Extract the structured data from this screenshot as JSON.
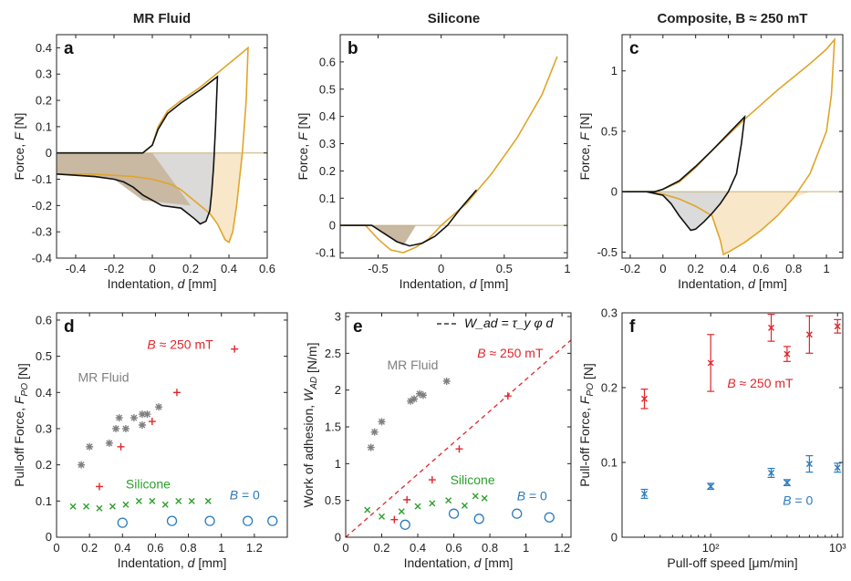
{
  "colors": {
    "mr_gold": "#E0A52A",
    "mr_fill": "#F8E6C6",
    "black": "#111111",
    "grey_fill": "#D9D9D9",
    "brown_fill": "#C9B9A2",
    "red": "#E0262B",
    "green": "#2CA02C",
    "blue": "#2B7BBF",
    "grey": "#7F7F7F"
  },
  "chart_data": [
    {
      "id": "a",
      "letter": "a",
      "title": "MR Fluid",
      "type": "line",
      "xlabel": "Indentation, d [mm]",
      "ylabel": "Force, F [N]",
      "xlim": [
        -0.5,
        0.6
      ],
      "ylim": [
        -0.4,
        0.45
      ],
      "xticks": [
        -0.4,
        -0.2,
        0,
        0.2,
        0.4,
        0.6
      ],
      "xticklabels": [
        "-0.4",
        "-0.2",
        "0",
        "0.2",
        "0.4",
        "0.6"
      ],
      "yticks": [
        -0.4,
        -0.3,
        -0.2,
        -0.1,
        0,
        0.1,
        0.2,
        0.3,
        0.4
      ],
      "yticklabels": [
        "-0.4",
        "-0.3",
        "-0.2",
        "-0.1",
        "0",
        "0.1",
        "0.2",
        "0.3",
        "0.4"
      ],
      "series": [
        {
          "color": "gold",
          "fill": "gold_light",
          "x": [
            -0.5,
            -0.2,
            -0.05,
            0,
            0.03,
            0.08,
            0.15,
            0.25,
            0.35,
            0.45,
            0.5,
            0.49,
            0.47,
            0.44,
            0.42,
            0.4,
            0.38,
            0.34,
            0.3,
            0.25,
            0.2,
            0.15,
            0.1,
            0.0,
            -0.1,
            -0.2,
            -0.28,
            -0.3,
            -0.35,
            -0.5
          ],
          "y": [
            0,
            0,
            0,
            0.03,
            0.1,
            0.16,
            0.2,
            0.25,
            0.31,
            0.37,
            0.4,
            0.2,
            0.0,
            -0.2,
            -0.3,
            -0.34,
            -0.33,
            -0.27,
            -0.23,
            -0.2,
            -0.17,
            -0.14,
            -0.12,
            -0.1,
            -0.09,
            -0.085,
            -0.082,
            -0.08,
            -0.08,
            -0.08
          ]
        },
        {
          "color": "black",
          "fill": "grey",
          "x": [
            -0.5,
            -0.2,
            -0.05,
            0,
            0.03,
            0.08,
            0.15,
            0.25,
            0.34,
            0.33,
            0.32,
            0.31,
            0.3,
            0.28,
            0.25,
            0.22,
            0.15,
            0.05,
            0.0,
            -0.05,
            -0.1,
            -0.15,
            -0.2,
            -0.3,
            -0.4,
            -0.5
          ],
          "y": [
            0,
            0,
            0,
            0.03,
            0.09,
            0.15,
            0.19,
            0.24,
            0.29,
            0.1,
            -0.05,
            -0.15,
            -0.22,
            -0.26,
            -0.27,
            -0.25,
            -0.21,
            -0.2,
            -0.18,
            -0.16,
            -0.13,
            -0.11,
            -0.1,
            -0.09,
            -0.085,
            -0.08
          ]
        }
      ]
    },
    {
      "id": "b",
      "letter": "b",
      "title": "Silicone",
      "type": "line",
      "xlabel": "Indentation, d [mm]",
      "ylabel": "Force, F [N]",
      "xlim": [
        -0.8,
        1.0
      ],
      "ylim": [
        -0.12,
        0.7
      ],
      "xticks": [
        -0.5,
        0,
        0.5,
        1
      ],
      "xticklabels": [
        "-0.5",
        "0",
        "0.5",
        "1"
      ],
      "yticks": [
        -0.1,
        0,
        0.1,
        0.2,
        0.3,
        0.4,
        0.5,
        0.6
      ],
      "yticklabels": [
        "-0.1",
        "0",
        "0.1",
        "0.2",
        "0.3",
        "0.4",
        "0.5",
        "0.6"
      ],
      "series": [
        {
          "color": "gold",
          "fill": "none",
          "x": [
            -0.8,
            -0.6,
            -0.5,
            -0.4,
            -0.3,
            -0.2,
            -0.1,
            0,
            0.2,
            0.4,
            0.6,
            0.8,
            0.92
          ],
          "y": [
            0,
            0,
            -0.05,
            -0.09,
            -0.1,
            -0.08,
            -0.05,
            0,
            0.08,
            0.19,
            0.32,
            0.48,
            0.62
          ]
        },
        {
          "color": "black",
          "fill": "none",
          "x": [
            -0.8,
            -0.55,
            -0.45,
            -0.35,
            -0.25,
            -0.15,
            -0.05,
            0.05,
            0.15,
            0.28
          ],
          "y": [
            0,
            0,
            -0.03,
            -0.06,
            -0.075,
            -0.065,
            -0.04,
            0.0,
            0.06,
            0.13
          ]
        }
      ]
    },
    {
      "id": "c",
      "letter": "c",
      "title": "Composite, B ≈ 250 mT",
      "type": "line",
      "xlabel": "Indentation, d [mm]",
      "ylabel": "Force, F [N]",
      "xlim": [
        -0.25,
        1.1
      ],
      "ylim": [
        -0.55,
        1.3
      ],
      "xticks": [
        -0.2,
        0,
        0.2,
        0.4,
        0.6,
        0.8,
        1
      ],
      "xticklabels": [
        "-0.2",
        "0",
        "0.2",
        "0.4",
        "0.6",
        "0.8",
        "1"
      ],
      "yticks": [
        -0.5,
        0,
        0.5,
        1
      ],
      "yticklabels": [
        "-0.5",
        "0",
        "0.5",
        "1"
      ],
      "series": [
        {
          "color": "gold",
          "fill": "gold_light",
          "x": [
            -0.25,
            -0.05,
            0,
            0.1,
            0.2,
            0.3,
            0.4,
            0.5,
            0.6,
            0.7,
            0.8,
            0.9,
            1.0,
            1.05,
            1.03,
            1.0,
            0.9,
            0.8,
            0.7,
            0.6,
            0.5,
            0.4,
            0.37,
            0.35,
            0.3,
            0.2,
            0.1,
            0.0,
            -0.1,
            -0.25
          ],
          "y": [
            0,
            0,
            0.02,
            0.08,
            0.2,
            0.34,
            0.47,
            0.6,
            0.72,
            0.84,
            0.95,
            1.06,
            1.18,
            1.26,
            0.8,
            0.5,
            0.15,
            -0.05,
            -0.2,
            -0.32,
            -0.42,
            -0.5,
            -0.52,
            -0.4,
            -0.2,
            -0.12,
            -0.06,
            -0.02,
            0,
            0
          ]
        },
        {
          "color": "black",
          "fill": "grey",
          "x": [
            -0.25,
            -0.05,
            0,
            0.1,
            0.2,
            0.3,
            0.4,
            0.5,
            0.48,
            0.45,
            0.4,
            0.35,
            0.3,
            0.25,
            0.2,
            0.17,
            0.1,
            0.05,
            0,
            -0.1,
            -0.25
          ],
          "y": [
            0,
            0,
            0.02,
            0.09,
            0.21,
            0.34,
            0.48,
            0.62,
            0.4,
            0.15,
            0.0,
            -0.1,
            -0.18,
            -0.25,
            -0.31,
            -0.32,
            -0.2,
            -0.1,
            -0.03,
            0,
            0
          ]
        }
      ]
    },
    {
      "id": "d",
      "letter": "d",
      "type": "scatter",
      "xlabel": "Indentation, d [mm]",
      "ylabel": "Pull-off Force, F_PO [N]",
      "xlim": [
        0,
        1.4
      ],
      "ylim": [
        0,
        0.62
      ],
      "xticks": [
        0,
        0.2,
        0.4,
        0.6,
        0.8,
        1,
        1.2
      ],
      "xticklabels": [
        "0",
        "0.2",
        "0.4",
        "0.6",
        "0.8",
        "1",
        "1.2"
      ],
      "yticks": [
        0.1,
        0.2,
        0.3,
        0.4,
        0.5,
        0.6
      ],
      "yticklabels": [
        "0.1",
        "0.2",
        "0.3",
        "0.4",
        "0.5",
        "0.6"
      ],
      "y0label": "0",
      "series": [
        {
          "name": "MR Fluid",
          "marker": "star",
          "color": "grey",
          "x": [
            0.15,
            0.2,
            0.32,
            0.36,
            0.38,
            0.42,
            0.47,
            0.52,
            0.55,
            0.52,
            0.62
          ],
          "y": [
            0.2,
            0.25,
            0.26,
            0.3,
            0.33,
            0.3,
            0.33,
            0.34,
            0.34,
            0.31,
            0.36
          ]
        },
        {
          "name": "B ≈ 250 mT",
          "marker": "plus",
          "color": "red",
          "x": [
            0.26,
            0.39,
            0.58,
            0.73,
            1.08
          ],
          "y": [
            0.14,
            0.25,
            0.32,
            0.4,
            0.52
          ]
        },
        {
          "name": "Silicone",
          "marker": "x",
          "color": "green",
          "x": [
            0.1,
            0.18,
            0.26,
            0.34,
            0.42,
            0.5,
            0.58,
            0.66,
            0.74,
            0.82,
            0.92
          ],
          "y": [
            0.085,
            0.085,
            0.08,
            0.085,
            0.09,
            0.1,
            0.1,
            0.09,
            0.1,
            0.1,
            0.1
          ]
        },
        {
          "name": "B = 0",
          "marker": "circle",
          "color": "blue",
          "x": [
            0.4,
            0.7,
            0.93,
            1.16,
            1.31
          ],
          "y": [
            0.04,
            0.045,
            0.045,
            0.045,
            0.045
          ]
        }
      ],
      "annotations": [
        {
          "text": "B ≈ 250 mT",
          "color": "red",
          "x": 0.55,
          "y": 0.52
        },
        {
          "text": "MR Fluid",
          "color": "grey",
          "x": 0.13,
          "y": 0.43
        },
        {
          "text": "Silicone",
          "color": "green",
          "x": 0.42,
          "y": 0.135
        },
        {
          "text": "B = 0",
          "color": "blue",
          "x": 1.05,
          "y": 0.105
        }
      ]
    },
    {
      "id": "e",
      "letter": "e",
      "type": "scatter",
      "xlabel": "Indentation, d [mm]",
      "ylabel": "Work of adhesion, W_ad [N/m]",
      "xlim": [
        0,
        1.25
      ],
      "ylim": [
        0,
        3.05
      ],
      "xticks": [
        0,
        0.2,
        0.4,
        0.6,
        0.8,
        1,
        1.2
      ],
      "xticklabels": [
        "0",
        "0.2",
        "0.4",
        "0.6",
        "0.8",
        "1",
        "1.2"
      ],
      "yticks": [
        0,
        0.5,
        1,
        1.5,
        2,
        2.5,
        3
      ],
      "yticklabels": [
        "0",
        "0.5",
        "1",
        "1.5",
        "2",
        "2.5",
        "3"
      ],
      "fit_line": {
        "label": "W_ad = τ_y φ d",
        "x": [
          0,
          1.25
        ],
        "y": [
          0,
          2.68
        ]
      },
      "series": [
        {
          "name": "MR Fluid",
          "marker": "star",
          "color": "grey",
          "x": [
            0.14,
            0.16,
            0.2,
            0.36,
            0.38,
            0.41,
            0.43,
            0.56
          ],
          "y": [
            1.22,
            1.43,
            1.57,
            1.85,
            1.88,
            1.95,
            1.93,
            2.12
          ]
        },
        {
          "name": "B ≈ 250 mT",
          "marker": "plus",
          "color": "red",
          "x": [
            0.27,
            0.34,
            0.48,
            0.63,
            0.9
          ],
          "y": [
            0.24,
            0.51,
            0.78,
            1.2,
            1.92
          ]
        },
        {
          "name": "Silicone",
          "marker": "x",
          "color": "green",
          "x": [
            0.12,
            0.2,
            0.31,
            0.4,
            0.48,
            0.57,
            0.66,
            0.72,
            0.77
          ],
          "y": [
            0.37,
            0.28,
            0.35,
            0.42,
            0.46,
            0.5,
            0.43,
            0.56,
            0.53
          ]
        },
        {
          "name": "B = 0",
          "marker": "circle",
          "color": "blue",
          "x": [
            0.33,
            0.6,
            0.74,
            0.95,
            1.13
          ],
          "y": [
            0.17,
            0.32,
            0.25,
            0.32,
            0.27
          ]
        }
      ],
      "annotations": [
        {
          "text": "MR Fluid",
          "color": "grey",
          "x": 0.23,
          "y": 2.28
        },
        {
          "text": "B ≈ 250 mT",
          "color": "red",
          "x": 0.73,
          "y": 2.44
        },
        {
          "text": "Silicone",
          "color": "green",
          "x": 0.58,
          "y": 0.72
        },
        {
          "text": "B = 0",
          "color": "blue",
          "x": 0.95,
          "y": 0.5
        }
      ]
    },
    {
      "id": "f",
      "letter": "f",
      "type": "scatter",
      "xscale": "log",
      "xlabel": "Pull-off speed [μm/min]",
      "ylabel": "Pull-off Force, F_PO [N]",
      "xlim": [
        20,
        1100
      ],
      "ylim": [
        0,
        0.3
      ],
      "xticks": [
        100,
        1000
      ],
      "xticklabels": [
        "10²",
        "10³"
      ],
      "yticks": [
        0,
        0.1,
        0.2,
        0.3
      ],
      "yticklabels": [
        "0",
        "0.1",
        "0.2",
        "0.3"
      ],
      "series": [
        {
          "name": "B ≈ 250 mT",
          "marker": "x",
          "color": "red",
          "x": [
            30,
            100,
            300,
            400,
            600,
            1000
          ],
          "y": [
            0.185,
            0.233,
            0.28,
            0.245,
            0.271,
            0.282
          ],
          "err": [
            0.013,
            0.038,
            0.018,
            0.01,
            0.025,
            0.009
          ]
        },
        {
          "name": "B = 0",
          "marker": "x",
          "color": "blue",
          "x": [
            30,
            100,
            300,
            400,
            600,
            1000
          ],
          "y": [
            0.058,
            0.068,
            0.086,
            0.073,
            0.098,
            0.093
          ],
          "err": [
            0.006,
            0.004,
            0.006,
            0.004,
            0.011,
            0.006
          ]
        }
      ],
      "annotations": [
        {
          "text": "B ≈ 250 mT",
          "color": "red",
          "x": 135,
          "y": 0.2
        },
        {
          "text": "B = 0",
          "color": "blue",
          "x": 370,
          "y": 0.043
        }
      ]
    }
  ]
}
